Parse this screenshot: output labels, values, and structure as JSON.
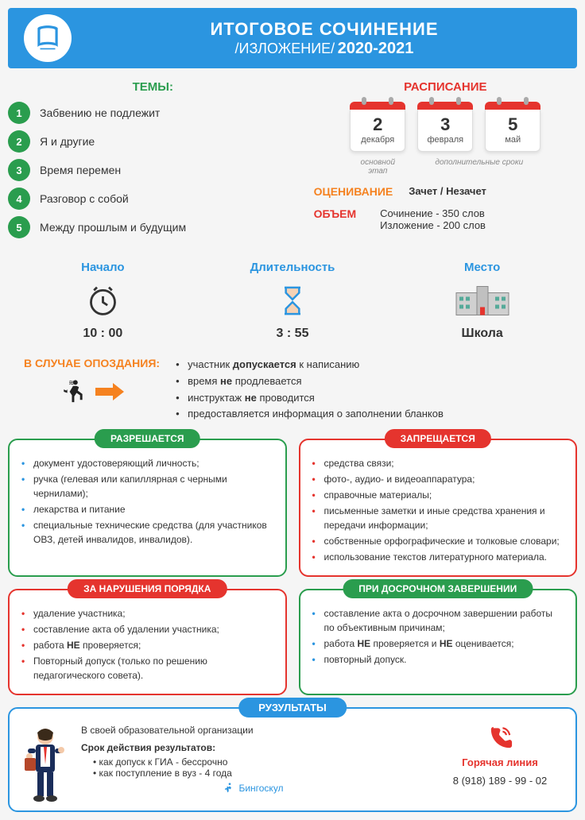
{
  "header": {
    "title": "ИТОГОВОЕ СОЧИНЕНИЕ",
    "subtitle": "/ИЗЛОЖЕНИЕ/",
    "year": "2020-2021"
  },
  "themes": {
    "label": "ТЕМЫ:",
    "items": [
      {
        "n": "1",
        "text": "Забвению не подлежит"
      },
      {
        "n": "2",
        "text": "Я и другие"
      },
      {
        "n": "3",
        "text": "Время перемен"
      },
      {
        "n": "4",
        "text": "Разговор с собой"
      },
      {
        "n": "5",
        "text": "Между прошлым и будущим"
      }
    ]
  },
  "schedule": {
    "label": "РАСПИСАНИЕ",
    "dates": [
      {
        "day": "2",
        "month": "декабря"
      },
      {
        "day": "3",
        "month": "февраля"
      },
      {
        "day": "5",
        "month": "май"
      }
    ],
    "note1": "основной этап",
    "note2": "дополнительные сроки"
  },
  "evaluation": {
    "label": "ОЦЕНИВАНИЕ",
    "value": "Зачет / Незачет"
  },
  "volume": {
    "label": "ОБЪЕМ",
    "line1": "Сочинение - 350 слов",
    "line2": "Изложение - 200 слов"
  },
  "info": {
    "start": {
      "label": "Начало",
      "value": "10 : 00"
    },
    "duration": {
      "label": "Длительность",
      "value": "3 : 55"
    },
    "place": {
      "label": "Место",
      "value": "Школа"
    }
  },
  "late": {
    "title": "В СЛУЧАЕ ОПОЗДАНИЯ:",
    "items": [
      "участник допускается к написанию",
      "время не продлевается",
      "инструктаж не проводится",
      "предоставляется информация о заполнении бланков"
    ]
  },
  "rules": {
    "allowed": {
      "title": "РАЗРЕШАЕТСЯ",
      "items": [
        "документ удостоверяющий личность;",
        "ручка (гелевая или капиллярная с черными чернилами);",
        "лекарства и питание",
        "специальные технические средства (для участников ОВЗ, детей инвалидов, инвалидов)."
      ]
    },
    "forbidden": {
      "title": "ЗАПРЕЩАЕТСЯ",
      "items": [
        "средства связи;",
        "фото-, аудио- и видеоаппаратура;",
        "справочные материалы;",
        "письменные заметки и иные средства хранения и передачи информации;",
        "собственные орфографические и толковые словари;",
        "использование текстов литературного материала."
      ]
    },
    "violations": {
      "title": "ЗА НАРУШЕНИЯ ПОРЯДКА",
      "items": [
        "удаление участника;",
        "составление акта об удалении участника;",
        "работа НЕ проверяется;",
        "Повторный допуск (только по решению педагогического совета)."
      ]
    },
    "early": {
      "title": "ПРИ ДОСРОЧНОМ ЗАВЕРШЕНИИ",
      "items": [
        "составление акта о досрочном завершении работы по объективным причинам;",
        "работа НЕ проверяется и НЕ оценивается;",
        "повторный допуск."
      ]
    }
  },
  "results": {
    "title": "РУЗУЛЬТАТЫ",
    "where": "В своей образовательной организации",
    "validity_label": "Срок действия результатов:",
    "validity_items": [
      "как допуск к ГИА - бессрочно",
      "как поступление в вуз - 4 года"
    ],
    "hotline_label": "Горячая линия",
    "hotline_number": "8 (918) 189 - 99 - 02",
    "brand": "Бингоскул"
  },
  "colors": {
    "blue": "#2b95e0",
    "green": "#2a9d4e",
    "red": "#e5342e",
    "orange": "#f58220"
  }
}
